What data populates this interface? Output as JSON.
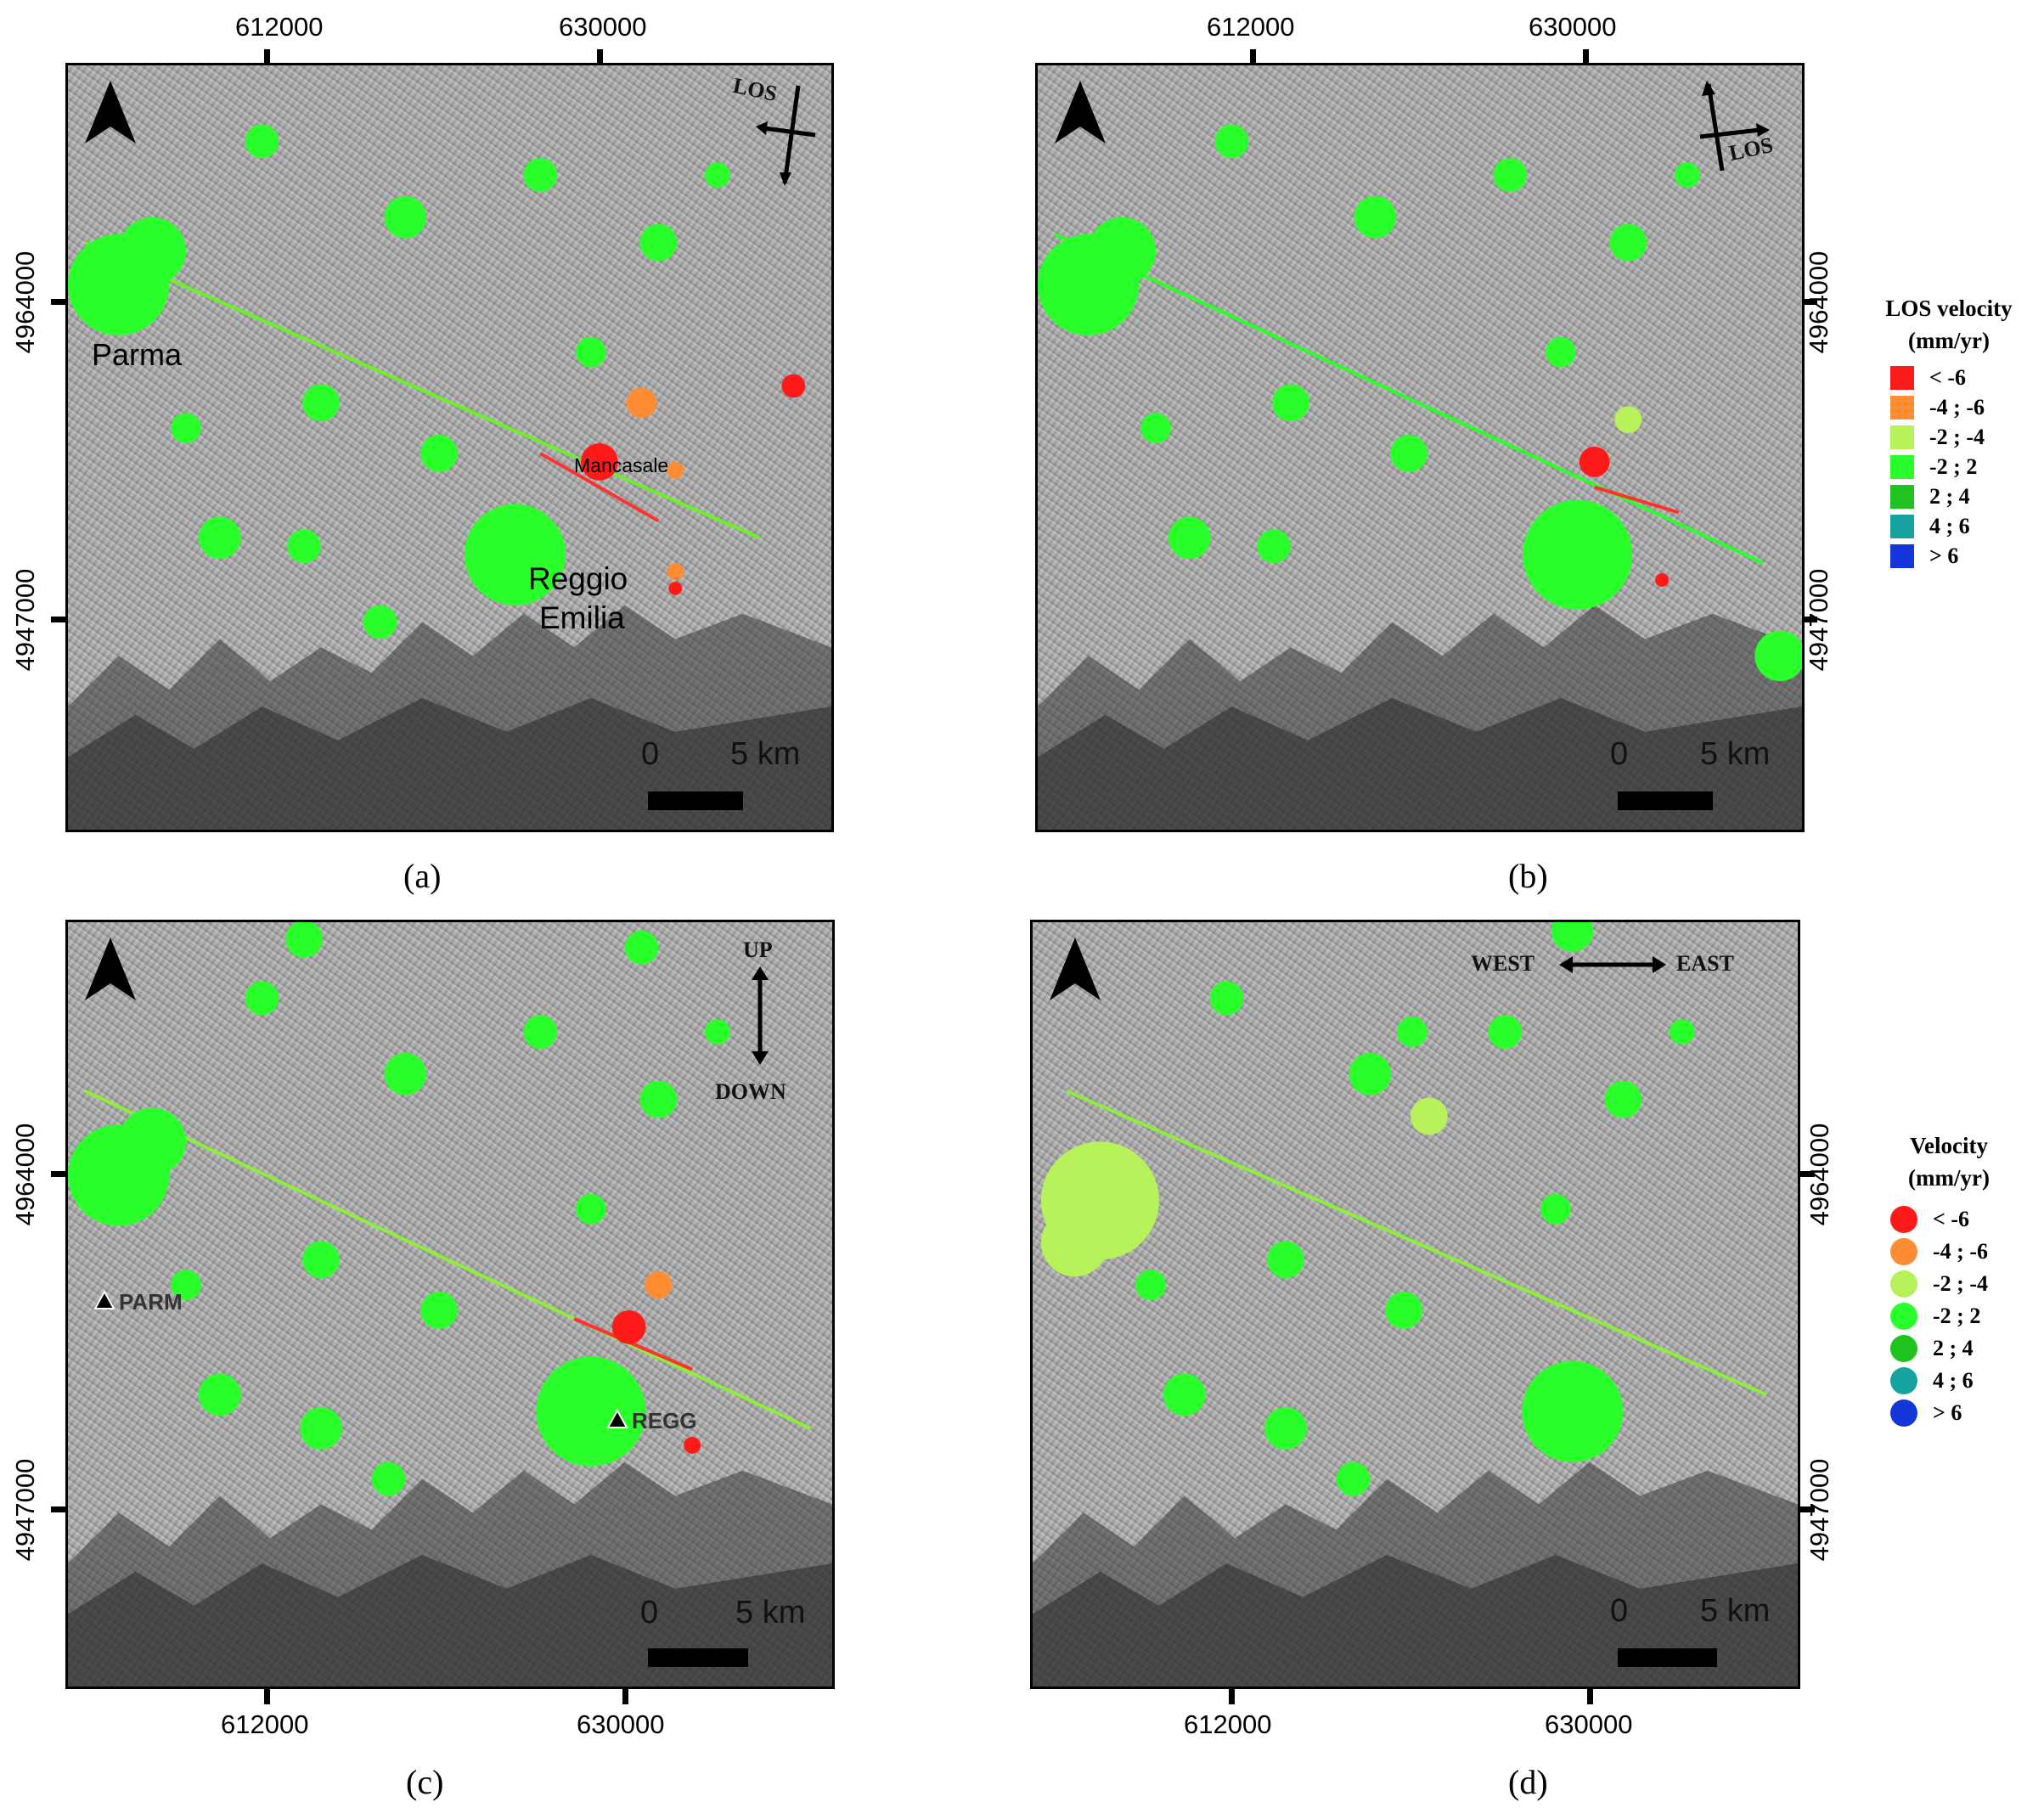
{
  "panels": {
    "a": {
      "caption": "(a)",
      "x_ticks": [
        "612000",
        "630000"
      ],
      "y_ticks": [
        "4964000",
        "4947000"
      ],
      "places": {
        "parma": "Parma",
        "mancasale": "Mancasale",
        "reggio": "Reggio",
        "emilia": "Emilia"
      },
      "scale": {
        "zero": "0",
        "end": "5 km"
      },
      "direction_label": "LOS"
    },
    "b": {
      "caption": "(b)",
      "x_ticks": [
        "612000",
        "630000"
      ],
      "y_ticks": [
        "4964000",
        "4947000"
      ],
      "scale": {
        "zero": "0",
        "end": "5 km"
      },
      "direction_label": "LOS"
    },
    "c": {
      "caption": "(c)",
      "x_ticks": [
        "612000",
        "630000"
      ],
      "y_ticks": [
        "4964000",
        "4947000"
      ],
      "stations": {
        "parm": "PARM",
        "regg": "REGG"
      },
      "scale": {
        "zero": "0",
        "end": "5 km"
      },
      "direction": {
        "up": "UP",
        "down": "DOWN"
      }
    },
    "d": {
      "caption": "(d)",
      "x_ticks": [
        "612000",
        "630000"
      ],
      "y_ticks": [
        "4964000",
        "4947000"
      ],
      "scale": {
        "zero": "0",
        "end": "5 km"
      },
      "direction": {
        "west": "WEST",
        "east": "EAST"
      }
    }
  },
  "legend_los": {
    "title_line1": "LOS velocity",
    "title_line2": "(mm/yr)",
    "classes": [
      {
        "label": "< -6",
        "color": "#ff1a1a"
      },
      {
        "label": "-4 ; -6",
        "color": "#ff8c33"
      },
      {
        "label": "-2 ; -4",
        "color": "#b8f25a"
      },
      {
        "label": "-2 ; 2",
        "color": "#2bff2b"
      },
      {
        "label": "2 ; 4",
        "color": "#1fc21f"
      },
      {
        "label": "4 ; 6",
        "color": "#16a3a0"
      },
      {
        "label": "> 6",
        "color": "#1436d9"
      }
    ]
  },
  "legend_velocity": {
    "title_line1": "Velocity",
    "title_line2": "(mm/yr)",
    "classes": [
      {
        "label": "< -6",
        "color": "#ff1a1a"
      },
      {
        "label": "-4 ; -6",
        "color": "#ff8c33"
      },
      {
        "label": "-2 ; -4",
        "color": "#b8f25a"
      },
      {
        "label": "-2 ; 2",
        "color": "#2bff2b"
      },
      {
        "label": "2 ; 4",
        "color": "#1fc21f"
      },
      {
        "label": "4 ; 6",
        "color": "#16a3a0"
      },
      {
        "label": "> 6",
        "color": "#1436d9"
      }
    ]
  }
}
